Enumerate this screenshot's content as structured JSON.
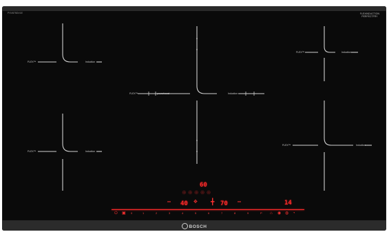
{
  "brand": {
    "name": "BOSCH"
  },
  "top_right_logo": {
    "line1": "FLEXINDUCTION",
    "line2": "PERFECTFRY"
  },
  "model": "PXV875DV1E",
  "zone_labels": {
    "tl_left": "FLEX™",
    "tl_right": "Induction",
    "bl_left": "FLEX™",
    "bl_right": "Induction",
    "c_left": "FLEX™",
    "c_mid": "powerboost",
    "c_right": "Induction",
    "tr_left": "FLEX™",
    "tr_right": "Induction",
    "br_left": "FLEX™",
    "br_right": "Induction"
  },
  "display": {
    "top_value": "60",
    "left_value": "40",
    "mid_value": "70",
    "right_value": "14"
  },
  "slider": {
    "levels": [
      "0",
      "1",
      "2",
      "3",
      "4",
      "5",
      "6",
      "7",
      "8",
      "9",
      "P"
    ]
  },
  "icons": {
    "power": "power-icon",
    "lock": "child-lock-icon",
    "timer": "timer-icon",
    "favorite": "favorite-icon",
    "frying": "frying-sensor-icon",
    "heat": "heat-icon"
  },
  "colors": {
    "glass": "#0a0a0a",
    "led": "#ff2a2a",
    "lines": "#d0d0d0"
  }
}
